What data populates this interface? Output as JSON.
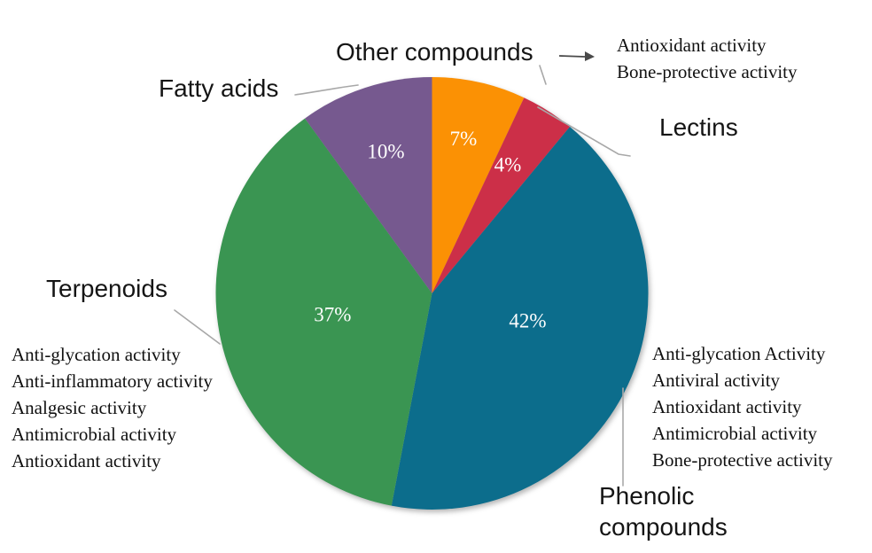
{
  "figure": {
    "background": "#ffffff",
    "pct_label_color": "#ffffff",
    "leader_line_color": "#a8a8a8",
    "arrow_color": "#4a4a4a"
  },
  "chart_data": {
    "type": "pie",
    "title": "",
    "unit": "percent",
    "direction": "clockwise",
    "start_angle_deg": 0,
    "center": [
      487.5,
      331
    ],
    "radius": 244,
    "slices": [
      {
        "label": "Other compounds",
        "value": 7,
        "pct_label": "7%",
        "color": "#FB9104",
        "activities": [
          "Antioxidant activity",
          "Bone-protective activity"
        ],
        "pct_angle": 11.5,
        "pct_r": 0.73
      },
      {
        "label": "Lectins",
        "value": 4,
        "pct_label": "4%",
        "color": "#CC2F48",
        "activities": [],
        "pct_angle": 30.5,
        "pct_r": 0.69
      },
      {
        "label": "Phenolic compounds",
        "value": 42,
        "pct_label": "42%",
        "color": "#0C6D8C",
        "activities": [
          "Anti-glycation Activity",
          "Antiviral activity",
          "Antioxidant activity",
          "Antimicrobial activity",
          "Bone-protective activity"
        ],
        "pct_angle": 106,
        "pct_r": 0.46
      },
      {
        "label": "Terpenoids",
        "value": 37,
        "pct_label": "37%",
        "color": "#3A9552",
        "activities": [
          "Anti-glycation activity",
          "Anti-inflammatory activity",
          "Analgesic activity",
          "Antimicrobial activity",
          "Antioxidant activity"
        ],
        "pct_angle": 258,
        "pct_r": 0.47
      },
      {
        "label": "Fatty acids",
        "value": 10,
        "pct_label": "10%",
        "color": "#76598F",
        "activities": [],
        "pct_angle": 342,
        "pct_r": 0.69
      }
    ]
  }
}
